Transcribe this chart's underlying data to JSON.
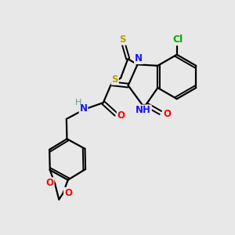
{
  "background_color": "#e8e8e8",
  "bond_color": "#000000",
  "colors": {
    "N": "#1414ff",
    "O": "#ff0000",
    "S": "#b8a000",
    "Cl": "#00aa00",
    "H_label": "#5a9a9a"
  },
  "font_size": 8.5,
  "figsize": [
    3.0,
    3.0
  ],
  "dpi": 100,
  "xlim": [
    0,
    10
  ],
  "ylim": [
    0,
    10
  ]
}
